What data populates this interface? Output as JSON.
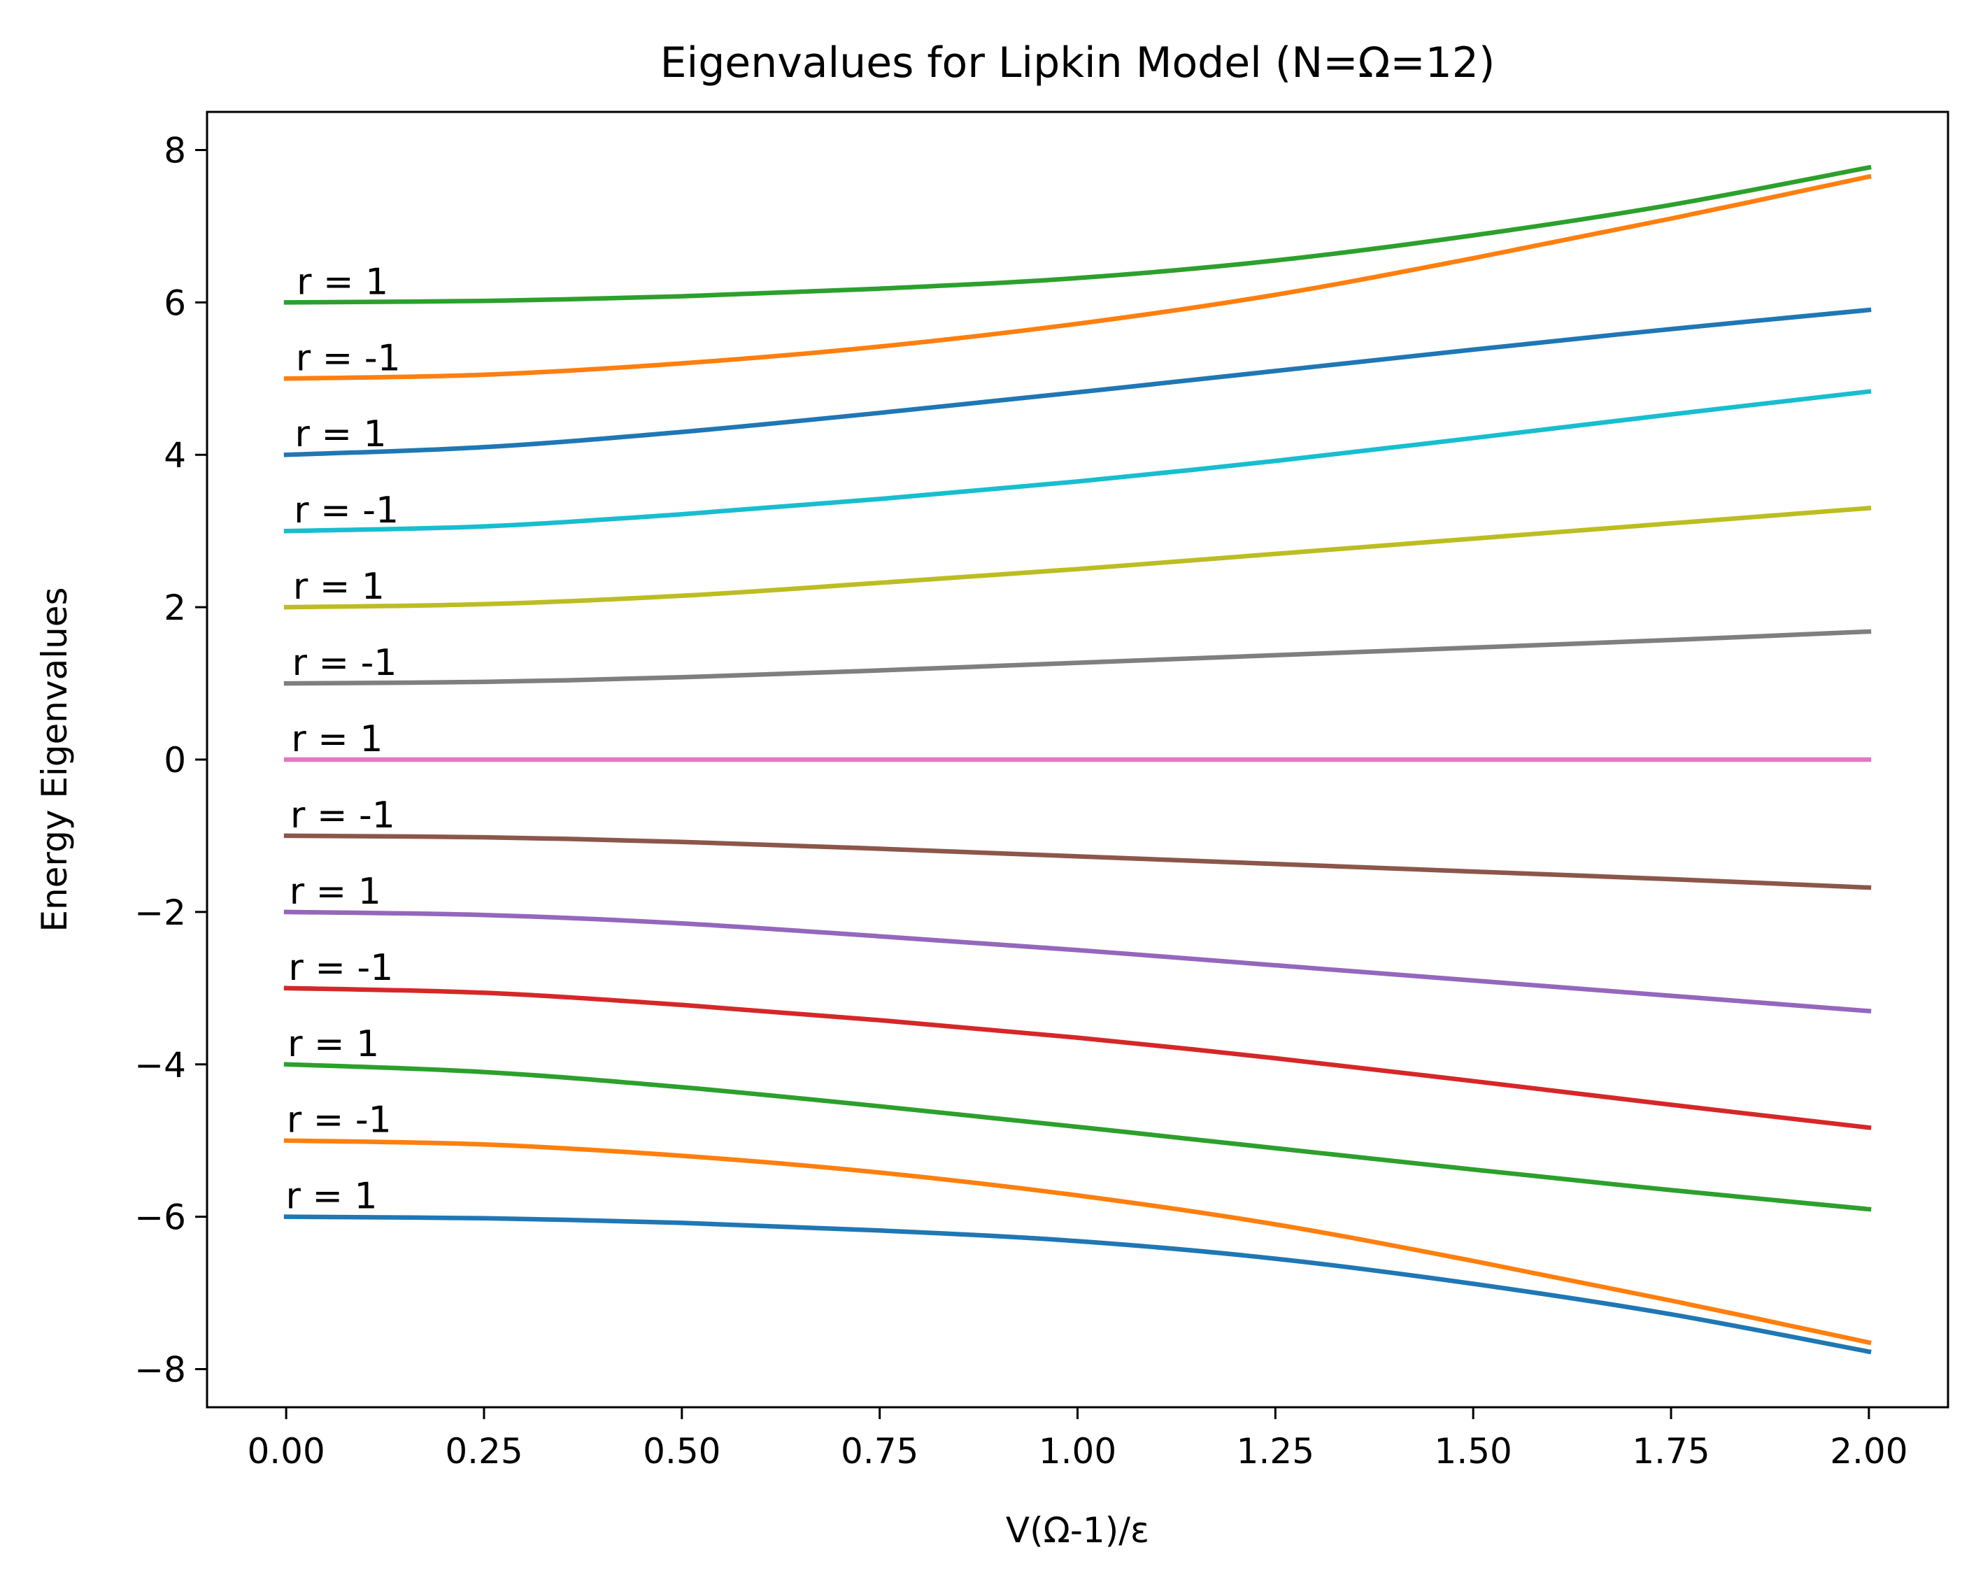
{
  "chart_data": {
    "type": "line",
    "title": "Eigenvalues for Lipkin Model (N=Ω=12)",
    "xlabel": "V(Ω-1)/ε",
    "ylabel": "Energy Eigenvalues",
    "xlim": [
      -0.1,
      2.1
    ],
    "ylim": [
      -8.5,
      8.5
    ],
    "x_ticks": [
      0.0,
      0.25,
      0.5,
      0.75,
      1.0,
      1.25,
      1.5,
      1.75,
      2.0
    ],
    "x_tick_labels": [
      "0.00",
      "0.25",
      "0.50",
      "0.75",
      "1.00",
      "1.25",
      "1.50",
      "1.75",
      "2.00"
    ],
    "y_ticks": [
      -8,
      -6,
      -4,
      -2,
      0,
      2,
      4,
      6,
      8
    ],
    "y_tick_labels": [
      "−8",
      "−6",
      "−4",
      "−2",
      "0",
      "2",
      "4",
      "6",
      "8"
    ],
    "grid": false,
    "legend": "none",
    "x": [
      0.0,
      0.25,
      0.5,
      0.75,
      1.0,
      1.25,
      1.5,
      1.75,
      2.0
    ],
    "series": [
      {
        "label": "r = 1",
        "color": "#2ca02c",
        "values": [
          6.0,
          6.02,
          6.08,
          6.18,
          6.32,
          6.55,
          6.88,
          7.28,
          7.77
        ]
      },
      {
        "label": "r = -1",
        "color": "#ff7f0e",
        "values": [
          5.0,
          5.05,
          5.2,
          5.42,
          5.72,
          6.1,
          6.58,
          7.1,
          7.65
        ]
      },
      {
        "label": "r = 1",
        "color": "#1f77b4",
        "values": [
          4.0,
          4.1,
          4.3,
          4.55,
          4.82,
          5.1,
          5.38,
          5.65,
          5.9
        ]
      },
      {
        "label": "r = -1",
        "color": "#17becf",
        "values": [
          3.0,
          3.06,
          3.22,
          3.42,
          3.65,
          3.92,
          4.22,
          4.53,
          4.83
        ]
      },
      {
        "label": "r = 1",
        "color": "#bcbd22",
        "values": [
          2.0,
          2.04,
          2.15,
          2.32,
          2.5,
          2.7,
          2.9,
          3.1,
          3.3
        ]
      },
      {
        "label": "r = -1",
        "color": "#7f7f7f",
        "values": [
          1.0,
          1.02,
          1.08,
          1.17,
          1.27,
          1.37,
          1.47,
          1.57,
          1.68
        ]
      },
      {
        "label": "r = 1",
        "color": "#e377c2",
        "values": [
          0,
          0,
          0,
          0,
          0,
          0,
          0,
          0,
          0
        ]
      },
      {
        "label": "r = -1",
        "color": "#8c564b",
        "values": [
          -1.0,
          -1.02,
          -1.08,
          -1.17,
          -1.27,
          -1.37,
          -1.47,
          -1.57,
          -1.68
        ]
      },
      {
        "label": "r = 1",
        "color": "#9467bd",
        "values": [
          -2.0,
          -2.04,
          -2.15,
          -2.32,
          -2.5,
          -2.7,
          -2.9,
          -3.1,
          -3.3
        ]
      },
      {
        "label": "r = -1",
        "color": "#d62728",
        "values": [
          -3.0,
          -3.06,
          -3.22,
          -3.42,
          -3.65,
          -3.92,
          -4.22,
          -4.53,
          -4.83
        ]
      },
      {
        "label": "r = 1",
        "color": "#2ca02c",
        "values": [
          -4.0,
          -4.1,
          -4.3,
          -4.55,
          -4.82,
          -5.1,
          -5.38,
          -5.65,
          -5.9
        ]
      },
      {
        "label": "r = -1",
        "color": "#ff7f0e",
        "values": [
          -5.0,
          -5.05,
          -5.2,
          -5.42,
          -5.72,
          -6.1,
          -6.58,
          -7.1,
          -7.65
        ]
      },
      {
        "label": "r = 1",
        "color": "#1f77b4",
        "values": [
          -6.0,
          -6.02,
          -6.08,
          -6.18,
          -6.32,
          -6.55,
          -6.88,
          -7.28,
          -7.77
        ]
      }
    ]
  }
}
